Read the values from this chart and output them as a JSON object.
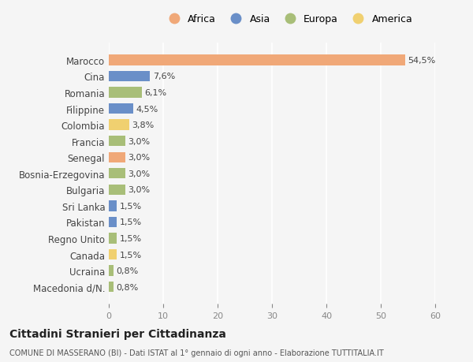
{
  "countries": [
    "Marocco",
    "Cina",
    "Romania",
    "Filippine",
    "Colombia",
    "Francia",
    "Senegal",
    "Bosnia-Erzegovina",
    "Bulgaria",
    "Sri Lanka",
    "Pakistan",
    "Regno Unito",
    "Canada",
    "Ucraina",
    "Macedonia d/N."
  ],
  "values": [
    54.5,
    7.6,
    6.1,
    4.5,
    3.8,
    3.0,
    3.0,
    3.0,
    3.0,
    1.5,
    1.5,
    1.5,
    1.5,
    0.8,
    0.8
  ],
  "labels": [
    "54,5%",
    "7,6%",
    "6,1%",
    "4,5%",
    "3,8%",
    "3,0%",
    "3,0%",
    "3,0%",
    "3,0%",
    "1,5%",
    "1,5%",
    "1,5%",
    "1,5%",
    "0,8%",
    "0,8%"
  ],
  "continents": [
    "Africa",
    "Asia",
    "Europa",
    "Asia",
    "America",
    "Europa",
    "Africa",
    "Europa",
    "Europa",
    "Asia",
    "Asia",
    "Europa",
    "America",
    "Europa",
    "Europa"
  ],
  "colors": {
    "Africa": "#F0A878",
    "Asia": "#6A8FC8",
    "Europa": "#A8BE78",
    "America": "#F0D070"
  },
  "legend_order": [
    "Africa",
    "Asia",
    "Europa",
    "America"
  ],
  "background_color": "#f5f5f5",
  "title_main": "Cittadini Stranieri per Cittadinanza",
  "title_sub": "COMUNE DI MASSERANO (BI) - Dati ISTAT al 1° gennaio di ogni anno - Elaborazione TUTTITALIA.IT",
  "xlim": [
    0,
    60
  ],
  "xticks": [
    0,
    10,
    20,
    30,
    40,
    50,
    60
  ]
}
